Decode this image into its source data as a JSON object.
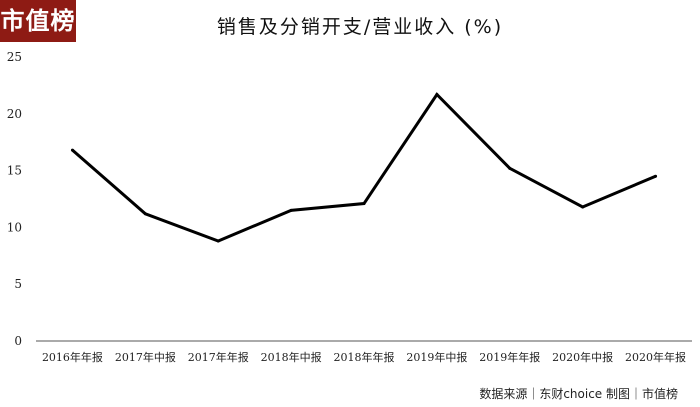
{
  "logo": {
    "text": "市值榜",
    "bg": "#8e1b14"
  },
  "source_text": "数据来源｜东财choice  制图｜市值榜",
  "chart_data": {
    "type": "line",
    "title": "销售及分销开支/营业收入 (%)",
    "xlabel": "",
    "ylabel": "",
    "ylim": [
      0,
      25
    ],
    "yticks": [
      0,
      5,
      10,
      15,
      20,
      25
    ],
    "grid": false,
    "legend": "none",
    "categories": [
      "2016年年报",
      "2017年中报",
      "2017年年报",
      "2018年中报",
      "2018年年报",
      "2019年中报",
      "2019年年报",
      "2020年中报",
      "2020年年报"
    ],
    "series": [
      {
        "values": [
          16.8,
          11.2,
          8.8,
          11.5,
          12.1,
          21.7,
          15.2,
          11.8,
          14.5
        ],
        "color": "#000000"
      }
    ]
  }
}
